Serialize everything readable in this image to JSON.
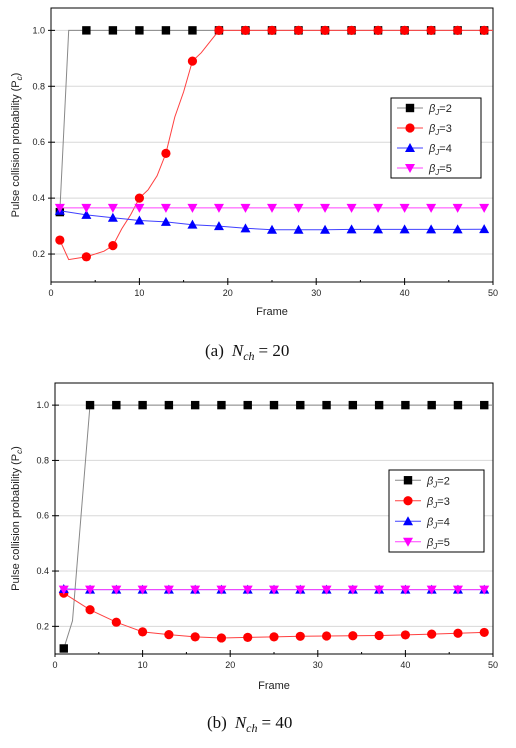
{
  "chart_data": [
    {
      "type": "line",
      "xlabel": "Frame",
      "ylabel": "Pulse collision probability (P",
      "ylabel_sub": "c",
      "ylabel_end": ")",
      "xlim": [
        0,
        50
      ],
      "ylim": [
        0.1,
        1.08
      ],
      "xticks": [
        "0",
        "10",
        "20",
        "30",
        "40",
        "50"
      ],
      "yticks": [
        "0.2",
        "0.4",
        "0.6",
        "0.8",
        "1.0"
      ],
      "grid": true,
      "legend_position": "right",
      "caption": {
        "prefix": "(a)",
        "var": "N",
        "sub": "ch",
        "rel": "= 20"
      },
      "series": [
        {
          "name": "βJ=2",
          "legend_prefix": "β",
          "legend_sub": "J",
          "legend_suffix": "=2",
          "color": "#000000",
          "line_color": "#888888",
          "marker": "square",
          "line_x": [
            1,
            2,
            50
          ],
          "line_y": [
            0.35,
            1.0,
            1.0
          ],
          "marker_x": [
            1,
            4,
            7,
            10,
            13,
            16,
            19,
            22,
            25,
            28,
            31,
            34,
            37,
            40,
            43,
            46,
            49
          ],
          "marker_y": [
            0.35,
            1.0,
            1.0,
            1.0,
            1.0,
            1.0,
            1.0,
            1.0,
            1.0,
            1.0,
            1.0,
            1.0,
            1.0,
            1.0,
            1.0,
            1.0,
            1.0
          ]
        },
        {
          "name": "βJ=3",
          "legend_prefix": "β",
          "legend_sub": "J",
          "legend_suffix": "=3",
          "color": "#ff0000",
          "line_color": "#ff4040",
          "marker": "circle",
          "line_x": [
            1,
            2,
            4,
            6,
            7,
            8,
            9,
            10,
            11,
            12,
            13,
            14,
            15,
            16,
            17,
            18,
            19,
            20,
            50
          ],
          "line_y": [
            0.25,
            0.18,
            0.19,
            0.21,
            0.23,
            0.29,
            0.34,
            0.4,
            0.43,
            0.48,
            0.56,
            0.69,
            0.78,
            0.89,
            0.92,
            0.96,
            1.0,
            1.0,
            1.0
          ],
          "marker_x": [
            1,
            4,
            7,
            10,
            13,
            16,
            19,
            22,
            25,
            28,
            31,
            34,
            37,
            40,
            43,
            46,
            49
          ],
          "marker_y": [
            0.25,
            0.19,
            0.23,
            0.4,
            0.56,
            0.89,
            1.0,
            1.0,
            1.0,
            1.0,
            1.0,
            1.0,
            1.0,
            1.0,
            1.0,
            1.0,
            1.0
          ]
        },
        {
          "name": "βJ=4",
          "legend_prefix": "β",
          "legend_sub": "J",
          "legend_suffix": "=4",
          "color": "#0000ff",
          "line_color": "#4040ff",
          "marker": "triangle-up",
          "line_x": [
            1,
            4,
            7,
            10,
            13,
            16,
            19,
            22,
            25,
            28,
            31,
            34,
            37,
            40,
            43,
            46,
            49
          ],
          "line_y": [
            0.355,
            0.34,
            0.33,
            0.32,
            0.315,
            0.305,
            0.3,
            0.292,
            0.287,
            0.287,
            0.287,
            0.288,
            0.288,
            0.288,
            0.288,
            0.288,
            0.289
          ],
          "marker_x": [
            1,
            4,
            7,
            10,
            13,
            16,
            19,
            22,
            25,
            28,
            31,
            34,
            37,
            40,
            43,
            46,
            49
          ],
          "marker_y": [
            0.355,
            0.34,
            0.33,
            0.32,
            0.315,
            0.305,
            0.3,
            0.292,
            0.287,
            0.287,
            0.287,
            0.288,
            0.288,
            0.288,
            0.288,
            0.288,
            0.289
          ]
        },
        {
          "name": "βJ=5",
          "legend_prefix": "β",
          "legend_sub": "J",
          "legend_suffix": "=5",
          "color": "#ff00ff",
          "line_color": "#ff40ff",
          "marker": "triangle-down",
          "line_x": [
            1,
            4,
            7,
            10,
            13,
            16,
            19,
            22,
            25,
            28,
            31,
            34,
            37,
            40,
            43,
            46,
            49
          ],
          "line_y": [
            0.365,
            0.365,
            0.365,
            0.365,
            0.365,
            0.365,
            0.365,
            0.365,
            0.365,
            0.365,
            0.365,
            0.365,
            0.365,
            0.365,
            0.365,
            0.365,
            0.365
          ],
          "marker_x": [
            1,
            4,
            7,
            10,
            13,
            16,
            19,
            22,
            25,
            28,
            31,
            34,
            37,
            40,
            43,
            46,
            49
          ],
          "marker_y": [
            0.365,
            0.365,
            0.365,
            0.365,
            0.365,
            0.365,
            0.365,
            0.365,
            0.365,
            0.365,
            0.365,
            0.365,
            0.365,
            0.365,
            0.365,
            0.365,
            0.365
          ]
        }
      ]
    },
    {
      "type": "line",
      "xlabel": "Frame",
      "ylabel": "Pulse collision probability (P",
      "ylabel_sub": "c",
      "ylabel_end": ")",
      "xlim": [
        0,
        50
      ],
      "ylim": [
        0.1,
        1.08
      ],
      "xticks": [
        "0",
        "10",
        "20",
        "30",
        "40",
        "50"
      ],
      "yticks": [
        "0.2",
        "0.4",
        "0.6",
        "0.8",
        "1.0"
      ],
      "grid": true,
      "legend_position": "right",
      "caption": {
        "prefix": "(b)",
        "var": "N",
        "sub": "ch",
        "rel": "= 40"
      },
      "series": [
        {
          "name": "βJ=2",
          "legend_prefix": "β",
          "legend_sub": "J",
          "legend_suffix": "=2",
          "color": "#000000",
          "line_color": "#888888",
          "marker": "square",
          "line_x": [
            1,
            2,
            4,
            50
          ],
          "line_y": [
            0.12,
            0.22,
            1.0,
            1.0
          ],
          "marker_x": [
            1,
            4,
            7,
            10,
            13,
            16,
            19,
            22,
            25,
            28,
            31,
            34,
            37,
            40,
            43,
            46,
            49
          ],
          "marker_y": [
            0.12,
            1.0,
            1.0,
            1.0,
            1.0,
            1.0,
            1.0,
            1.0,
            1.0,
            1.0,
            1.0,
            1.0,
            1.0,
            1.0,
            1.0,
            1.0,
            1.0
          ]
        },
        {
          "name": "βJ=3",
          "legend_prefix": "β",
          "legend_sub": "J",
          "legend_suffix": "=3",
          "color": "#ff0000",
          "line_color": "#ff4040",
          "marker": "circle",
          "line_x": [
            1,
            4,
            7,
            10,
            13,
            16,
            19,
            22,
            25,
            28,
            31,
            34,
            37,
            40,
            43,
            46,
            49
          ],
          "line_y": [
            0.32,
            0.26,
            0.215,
            0.18,
            0.17,
            0.162,
            0.158,
            0.16,
            0.162,
            0.164,
            0.165,
            0.166,
            0.167,
            0.169,
            0.172,
            0.175,
            0.178
          ],
          "marker_x": [
            1,
            4,
            7,
            10,
            13,
            16,
            19,
            22,
            25,
            28,
            31,
            34,
            37,
            40,
            43,
            46,
            49
          ],
          "marker_y": [
            0.32,
            0.26,
            0.215,
            0.18,
            0.17,
            0.162,
            0.158,
            0.16,
            0.162,
            0.164,
            0.165,
            0.166,
            0.167,
            0.169,
            0.172,
            0.175,
            0.178
          ]
        },
        {
          "name": "βJ=4",
          "legend_prefix": "β",
          "legend_sub": "J",
          "legend_suffix": "=4",
          "color": "#0000ff",
          "line_color": "#4040ff",
          "marker": "triangle-up",
          "line_x": [
            1,
            4,
            7,
            10,
            13,
            16,
            19,
            22,
            25,
            28,
            31,
            34,
            37,
            40,
            43,
            46,
            49
          ],
          "line_y": [
            0.335,
            0.333,
            0.333,
            0.333,
            0.333,
            0.333,
            0.333,
            0.333,
            0.333,
            0.333,
            0.333,
            0.333,
            0.333,
            0.333,
            0.333,
            0.333,
            0.333
          ],
          "marker_x": [
            1,
            4,
            7,
            10,
            13,
            16,
            19,
            22,
            25,
            28,
            31,
            34,
            37,
            40,
            43,
            46,
            49
          ],
          "marker_y": [
            0.335,
            0.333,
            0.333,
            0.333,
            0.333,
            0.333,
            0.333,
            0.333,
            0.333,
            0.333,
            0.333,
            0.333,
            0.333,
            0.333,
            0.333,
            0.333,
            0.333
          ]
        },
        {
          "name": "βJ=5",
          "legend_prefix": "β",
          "legend_sub": "J",
          "legend_suffix": "=5",
          "color": "#ff00ff",
          "line_color": "#ff40ff",
          "marker": "triangle-down",
          "line_x": [
            1,
            4,
            7,
            10,
            13,
            16,
            19,
            22,
            25,
            28,
            31,
            34,
            37,
            40,
            43,
            46,
            49
          ],
          "line_y": [
            0.333,
            0.333,
            0.333,
            0.333,
            0.333,
            0.333,
            0.333,
            0.333,
            0.333,
            0.333,
            0.333,
            0.333,
            0.333,
            0.333,
            0.333,
            0.333,
            0.333
          ],
          "marker_x": [
            1,
            4,
            7,
            10,
            13,
            16,
            19,
            22,
            25,
            28,
            31,
            34,
            37,
            40,
            43,
            46,
            49
          ],
          "marker_y": [
            0.333,
            0.333,
            0.333,
            0.333,
            0.333,
            0.333,
            0.333,
            0.333,
            0.333,
            0.333,
            0.333,
            0.333,
            0.333,
            0.333,
            0.333,
            0.333,
            0.333
          ]
        }
      ]
    }
  ]
}
